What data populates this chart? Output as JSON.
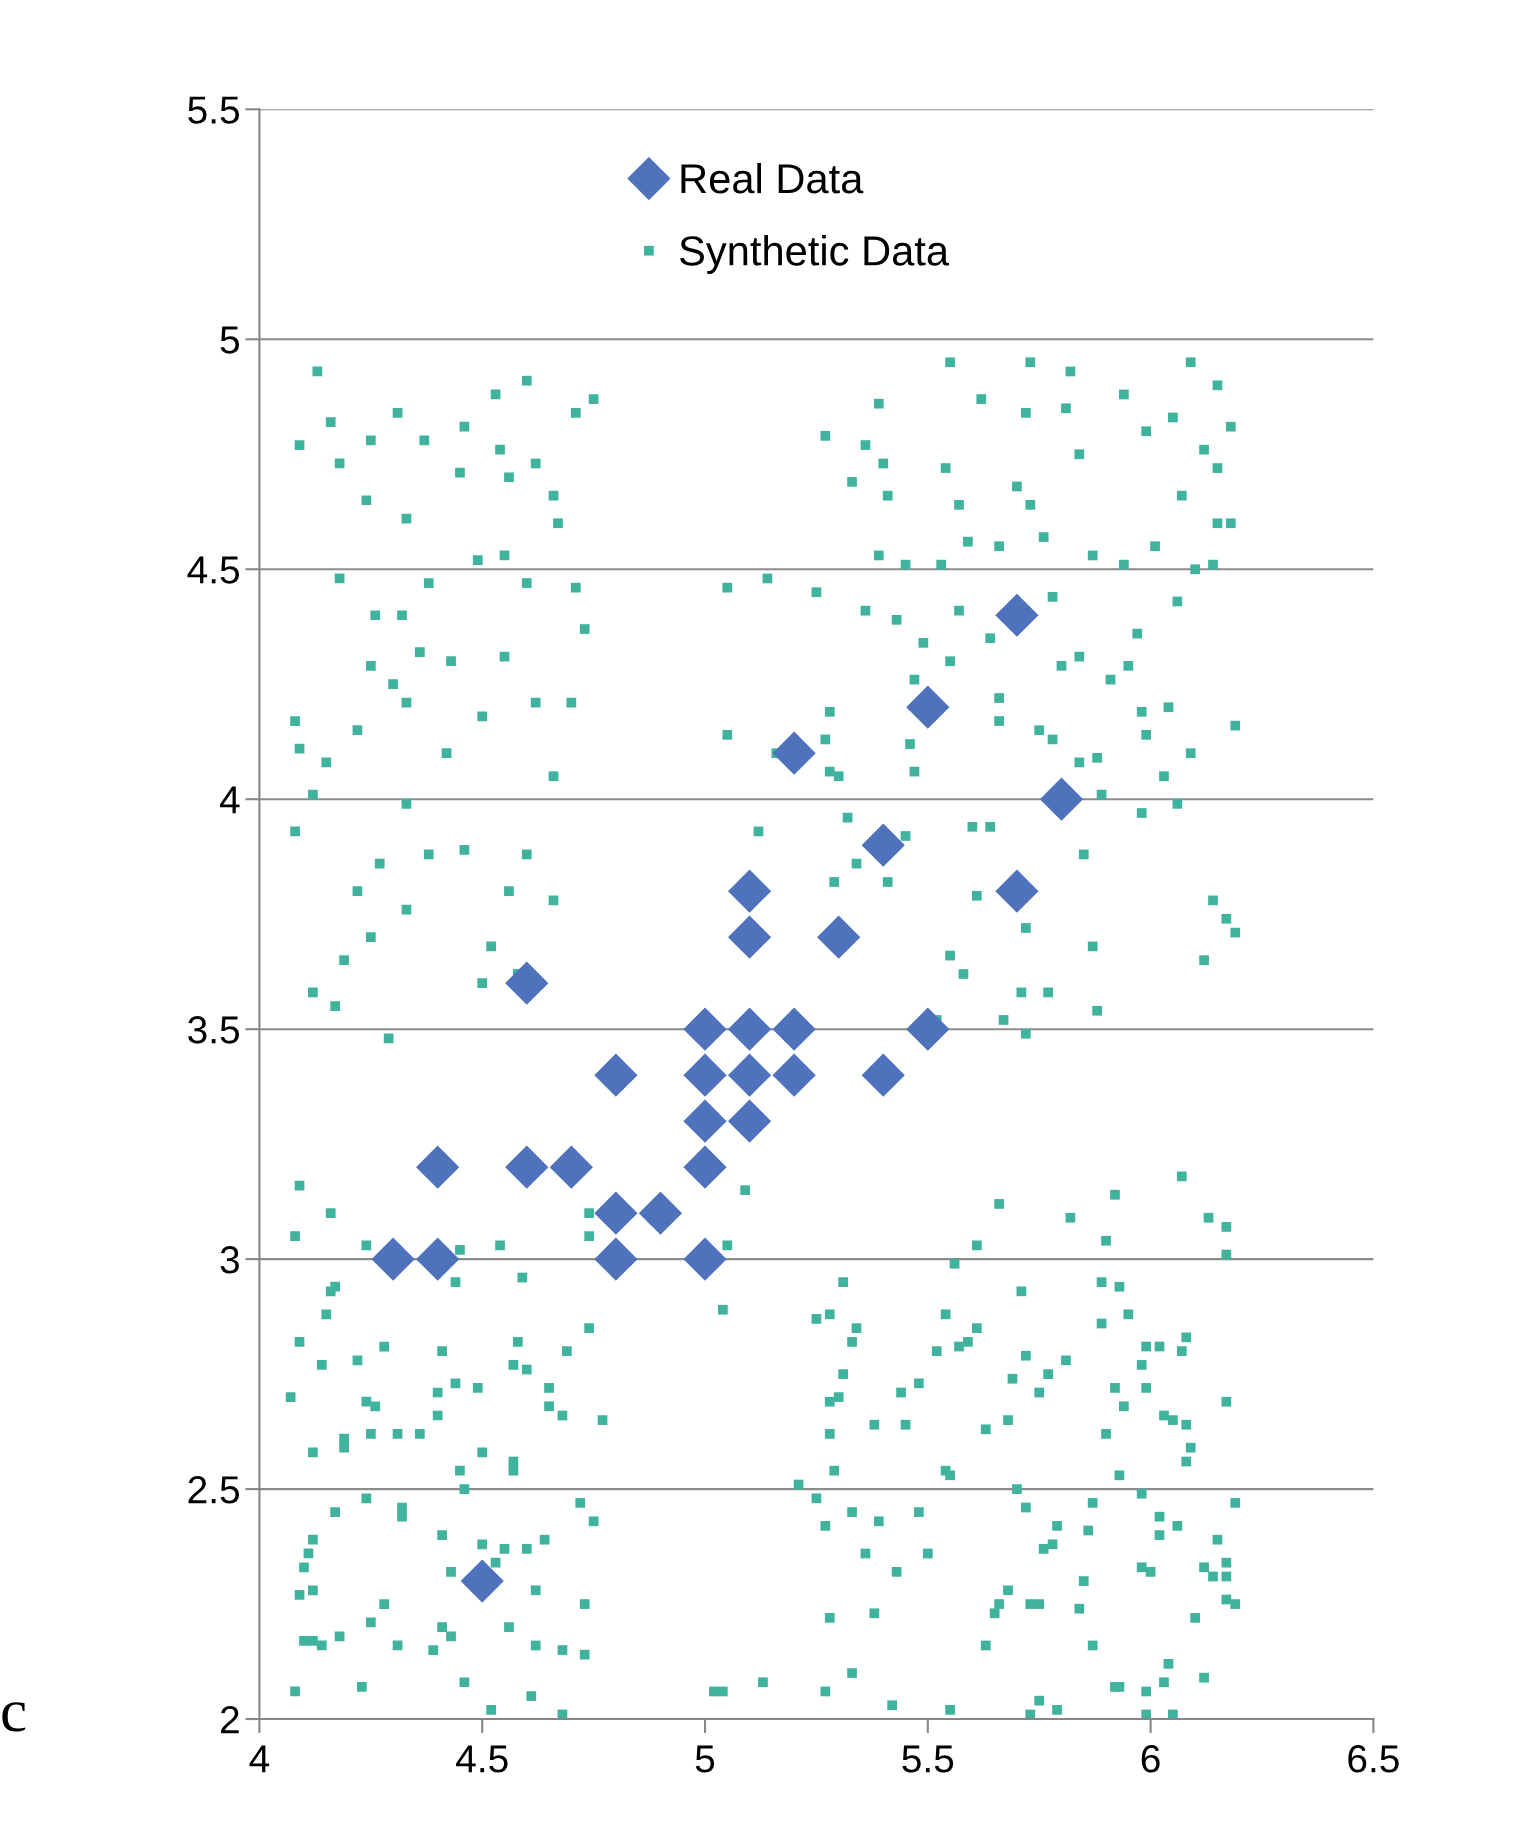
{
  "chart_data": {
    "type": "scatter",
    "xlim": [
      4,
      6.5
    ],
    "xticks": [
      4,
      4.5,
      5,
      5.5,
      6,
      6.5
    ],
    "ylim": [
      2,
      5.5
    ],
    "yticks": [
      2,
      2.5,
      3,
      3.5,
      4,
      4.5,
      5,
      5.5
    ],
    "grid": "y",
    "legend": "top",
    "annotations": [
      "c"
    ],
    "series": [
      {
        "name": "Real Data",
        "color": "#4f72bd",
        "marker": "diamond",
        "x": [
          4.3,
          4.4,
          4.4,
          4.5,
          4.6,
          4.6,
          4.7,
          4.8,
          4.8,
          4.8,
          4.9,
          5.0,
          5.0,
          5.0,
          5.0,
          5.0,
          5.1,
          5.1,
          5.1,
          5.1,
          5.1,
          5.2,
          5.2,
          5.2,
          5.3,
          5.4,
          5.4,
          5.5,
          5.5,
          5.7,
          5.7,
          5.8
        ],
        "values": [
          3.0,
          3.0,
          3.2,
          2.3,
          3.6,
          3.2,
          3.2,
          3.4,
          3.1,
          3.0,
          3.1,
          3.5,
          3.4,
          3.3,
          3.2,
          3.0,
          3.8,
          3.7,
          3.5,
          3.4,
          3.3,
          4.1,
          3.5,
          3.4,
          3.7,
          3.9,
          3.4,
          4.2,
          3.5,
          4.4,
          3.8,
          4.0
        ]
      },
      {
        "name": "Synthetic Data",
        "color": "#40b39e",
        "marker": "square",
        "x": [
          4.13,
          4.09,
          4.16,
          4.25,
          4.31,
          4.37,
          4.46,
          4.53,
          4.6,
          4.71,
          4.75,
          4.18,
          4.24,
          4.33,
          4.45,
          4.54,
          4.56,
          4.62,
          4.66,
          4.67,
          4.49,
          4.55,
          4.18,
          4.26,
          4.32,
          4.38,
          4.6,
          4.71,
          4.25,
          4.3,
          4.36,
          4.43,
          4.55,
          4.73,
          4.08,
          4.09,
          4.22,
          4.33,
          4.5,
          4.62,
          4.7,
          4.15,
          4.42,
          4.66,
          4.12,
          4.08,
          4.33,
          4.27,
          4.22,
          4.38,
          4.46,
          4.56,
          4.6,
          4.66,
          4.25,
          4.19,
          4.33,
          4.52,
          4.5,
          4.12,
          4.17,
          4.29,
          4.58,
          5.55,
          5.73,
          5.82,
          6.09,
          6.15,
          5.94,
          5.62,
          5.39,
          5.81,
          6.05,
          5.72,
          6.18,
          5.99,
          5.27,
          5.36,
          6.12,
          5.84,
          5.4,
          5.54,
          6.15,
          5.33,
          5.7,
          5.41,
          5.57,
          6.07,
          5.73,
          6.15,
          6.18,
          5.59,
          5.76,
          5.66,
          5.87,
          6.01,
          5.39,
          5.45,
          5.53,
          5.94,
          6.1,
          6.14,
          5.25,
          5.05,
          5.14,
          5.36,
          5.78,
          6.06,
          5.43,
          5.57,
          5.64,
          5.97,
          5.49,
          5.55,
          5.84,
          5.95,
          5.8,
          5.47,
          5.91,
          6.04,
          5.66,
          5.98,
          5.66,
          6.19,
          5.28,
          5.75,
          5.05,
          5.27,
          5.46,
          5.78,
          5.99,
          5.88,
          6.09,
          5.16,
          5.28,
          5.47,
          6.03,
          5.3,
          5.84,
          5.89,
          6.06,
          5.98,
          5.12,
          5.32,
          5.45,
          5.6,
          5.64,
          5.34,
          5.29,
          5.41,
          5.85,
          5.61,
          6.14,
          6.17,
          6.19,
          5.72,
          5.55,
          5.58,
          5.87,
          6.12,
          5.71,
          5.77,
          5.67,
          5.88,
          5.72,
          5.52,
          5.09,
          5.05,
          5.04,
          4.74,
          4.74,
          4.09,
          4.08,
          4.16,
          4.24,
          4.45,
          4.54,
          4.44,
          4.59,
          4.16,
          4.17,
          4.15,
          4.09,
          4.28,
          4.41,
          4.58,
          4.69,
          4.74,
          4.14,
          4.22,
          4.57,
          4.6,
          4.07,
          4.44,
          4.49,
          4.65,
          4.4,
          4.24,
          4.26,
          4.4,
          4.65,
          4.68,
          4.77,
          4.19,
          4.19,
          4.25,
          4.31,
          4.36,
          4.12,
          4.5,
          4.57,
          4.45,
          4.46,
          4.57,
          4.17,
          4.24,
          4.32,
          4.32,
          4.72,
          4.75,
          4.12,
          4.11,
          4.41,
          4.5,
          4.55,
          4.6,
          4.64,
          4.1,
          4.43,
          4.53,
          4.09,
          4.12,
          4.62,
          4.73,
          4.28,
          4.25,
          4.41,
          4.43,
          4.56,
          4.1,
          4.12,
          4.18,
          4.14,
          4.31,
          4.39,
          4.62,
          4.68,
          4.73,
          4.23,
          4.46,
          4.08,
          4.61,
          4.52,
          4.68,
          6.07,
          6.13,
          6.17,
          6.17,
          5.92,
          5.82,
          5.66,
          5.61,
          5.9,
          5.56,
          5.31,
          5.89,
          5.93,
          5.71,
          5.54,
          5.28,
          5.25,
          5.34,
          5.33,
          5.61,
          5.95,
          5.89,
          6.08,
          5.59,
          5.57,
          5.99,
          6.02,
          6.07,
          5.52,
          5.81,
          5.72,
          5.98,
          5.31,
          5.69,
          5.77,
          5.92,
          5.99,
          5.48,
          5.44,
          5.3,
          5.28,
          5.75,
          5.94,
          6.17,
          6.03,
          6.05,
          6.08,
          5.38,
          5.45,
          5.68,
          5.63,
          5.28,
          5.9,
          6.09,
          6.08,
          5.54,
          5.55,
          5.29,
          5.93,
          5.21,
          5.7,
          5.98,
          5.25,
          5.87,
          6.19,
          5.72,
          5.33,
          5.48,
          6.02,
          5.79,
          5.39,
          5.27,
          6.06,
          5.86,
          6.02,
          6.15,
          5.78,
          5.76,
          5.5,
          5.36,
          6.17,
          6.12,
          5.43,
          5.98,
          6.0,
          6.14,
          6.17,
          5.85,
          5.68,
          6.17,
          6.19,
          5.66,
          5.73,
          5.75,
          5.84,
          5.65,
          5.38,
          5.28,
          6.1,
          5.63,
          5.87,
          6.04,
          6.03,
          6.12,
          5.33,
          5.27,
          5.92,
          5.93,
          5.99,
          5.75,
          5.42,
          5.55,
          5.73,
          5.79,
          5.99,
          6.05,
          5.02,
          5.04,
          5.13
        ],
        "values": [
          4.93,
          4.77,
          4.82,
          4.78,
          4.84,
          4.78,
          4.81,
          4.88,
          4.91,
          4.84,
          4.87,
          4.73,
          4.65,
          4.61,
          4.71,
          4.76,
          4.7,
          4.73,
          4.66,
          4.6,
          4.52,
          4.53,
          4.48,
          4.4,
          4.4,
          4.47,
          4.47,
          4.46,
          4.29,
          4.25,
          4.32,
          4.3,
          4.31,
          4.37,
          4.17,
          4.11,
          4.15,
          4.21,
          4.18,
          4.21,
          4.21,
          4.08,
          4.1,
          4.05,
          4.01,
          3.93,
          3.99,
          3.86,
          3.8,
          3.88,
          3.89,
          3.8,
          3.88,
          3.78,
          3.7,
          3.65,
          3.76,
          3.68,
          3.6,
          3.58,
          3.55,
          3.48,
          3.62,
          4.95,
          4.95,
          4.93,
          4.95,
          4.9,
          4.88,
          4.87,
          4.86,
          4.85,
          4.83,
          4.84,
          4.81,
          4.8,
          4.79,
          4.77,
          4.76,
          4.75,
          4.73,
          4.72,
          4.72,
          4.69,
          4.68,
          4.66,
          4.64,
          4.66,
          4.64,
          4.6,
          4.6,
          4.56,
          4.57,
          4.55,
          4.53,
          4.55,
          4.53,
          4.51,
          4.51,
          4.51,
          4.5,
          4.51,
          4.45,
          4.46,
          4.48,
          4.41,
          4.44,
          4.43,
          4.39,
          4.41,
          4.35,
          4.36,
          4.34,
          4.3,
          4.31,
          4.29,
          4.29,
          4.26,
          4.26,
          4.2,
          4.22,
          4.19,
          4.17,
          4.16,
          4.19,
          4.15,
          4.14,
          4.13,
          4.12,
          4.13,
          4.14,
          4.09,
          4.1,
          4.1,
          4.06,
          4.06,
          4.05,
          4.05,
          4.08,
          4.01,
          3.99,
          3.97,
          3.93,
          3.96,
          3.92,
          3.94,
          3.94,
          3.86,
          3.82,
          3.82,
          3.88,
          3.79,
          3.78,
          3.74,
          3.71,
          3.72,
          3.66,
          3.62,
          3.68,
          3.65,
          3.58,
          3.58,
          3.52,
          3.54,
          3.49,
          3.52,
          3.15,
          3.03,
          2.89,
          3.1,
          3.05,
          3.16,
          3.05,
          3.1,
          3.03,
          3.02,
          3.03,
          2.95,
          2.96,
          2.93,
          2.94,
          2.88,
          2.82,
          2.81,
          2.8,
          2.82,
          2.8,
          2.85,
          2.77,
          2.78,
          2.77,
          2.76,
          2.7,
          2.73,
          2.72,
          2.72,
          2.71,
          2.69,
          2.68,
          2.66,
          2.68,
          2.66,
          2.65,
          2.61,
          2.59,
          2.62,
          2.62,
          2.62,
          2.58,
          2.58,
          2.56,
          2.54,
          2.5,
          2.54,
          2.45,
          2.48,
          2.46,
          2.44,
          2.47,
          2.43,
          2.39,
          2.36,
          2.4,
          2.38,
          2.37,
          2.37,
          2.39,
          2.33,
          2.32,
          2.34,
          2.27,
          2.28,
          2.28,
          2.25,
          2.25,
          2.21,
          2.2,
          2.18,
          2.2,
          2.17,
          2.17,
          2.18,
          2.16,
          2.16,
          2.15,
          2.16,
          2.15,
          2.14,
          2.07,
          2.08,
          2.06,
          2.05,
          2.02,
          2.01,
          3.18,
          3.09,
          3.07,
          3.01,
          3.14,
          3.09,
          3.12,
          3.03,
          3.04,
          2.99,
          2.95,
          2.95,
          2.94,
          2.93,
          2.88,
          2.88,
          2.87,
          2.85,
          2.82,
          2.85,
          2.88,
          2.86,
          2.83,
          2.82,
          2.81,
          2.81,
          2.81,
          2.8,
          2.8,
          2.78,
          2.79,
          2.77,
          2.75,
          2.74,
          2.75,
          2.72,
          2.72,
          2.73,
          2.71,
          2.7,
          2.69,
          2.71,
          2.68,
          2.69,
          2.66,
          2.65,
          2.64,
          2.64,
          2.64,
          2.65,
          2.63,
          2.62,
          2.62,
          2.59,
          2.56,
          2.54,
          2.53,
          2.54,
          2.53,
          2.51,
          2.5,
          2.49,
          2.48,
          2.47,
          2.47,
          2.46,
          2.45,
          2.45,
          2.44,
          2.42,
          2.43,
          2.42,
          2.42,
          2.41,
          2.4,
          2.39,
          2.38,
          2.37,
          2.36,
          2.36,
          2.34,
          2.33,
          2.32,
          2.33,
          2.32,
          2.31,
          2.31,
          2.3,
          2.28,
          2.26,
          2.25,
          2.25,
          2.25,
          2.25,
          2.24,
          2.23,
          2.23,
          2.22,
          2.22,
          2.16,
          2.16,
          2.12,
          2.08,
          2.09,
          2.1,
          2.06,
          2.07,
          2.07,
          2.06,
          2.04,
          2.03,
          2.02,
          2.01,
          2.02,
          2.01,
          2.01,
          2.06,
          2.06,
          2.08
        ]
      }
    ]
  }
}
